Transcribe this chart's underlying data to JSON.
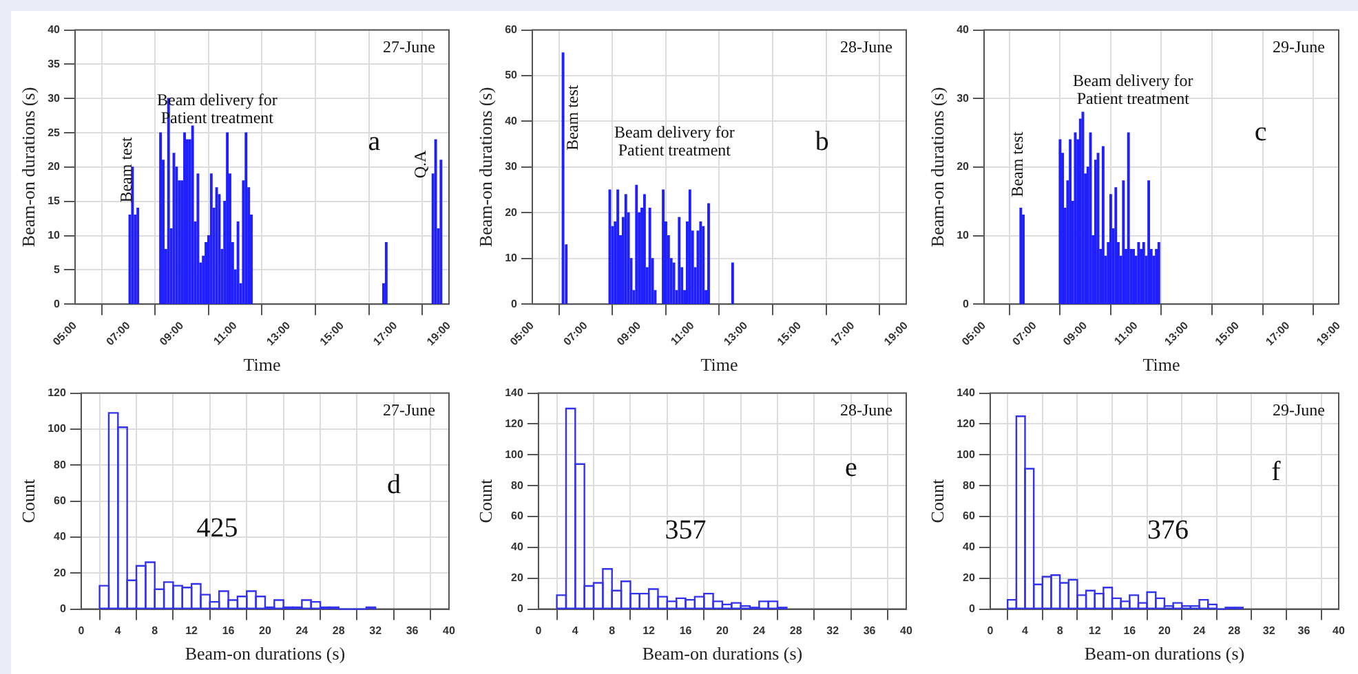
{
  "chart_data": [
    {
      "type": "bar",
      "title": "27-June",
      "xlabel": "Time",
      "ylabel": "Beam-on durations (s)",
      "color": "#2020ff",
      "grid": true,
      "x": [
        7.05,
        7.15,
        7.25,
        7.35,
        8.2,
        8.3,
        8.4,
        8.5,
        8.6,
        8.7,
        8.8,
        8.9,
        9.0,
        9.1,
        9.2,
        9.3,
        9.4,
        9.5,
        9.6,
        9.7,
        9.8,
        9.9,
        10.0,
        10.1,
        10.2,
        10.3,
        10.4,
        10.5,
        10.6,
        10.7,
        10.8,
        10.9,
        11.0,
        11.1,
        11.2,
        11.3,
        11.4,
        11.5,
        11.6,
        16.55,
        16.65,
        18.4,
        18.5,
        18.6,
        18.7
      ],
      "values": [
        13,
        20,
        13,
        14,
        25,
        21,
        8,
        30,
        11,
        22,
        20,
        18,
        18,
        25,
        24,
        24,
        26,
        12,
        19,
        6,
        7,
        9,
        10,
        19,
        14,
        17,
        16,
        8,
        15,
        25,
        19,
        9,
        5,
        12,
        3,
        18,
        25,
        17,
        13,
        3,
        9,
        19,
        24,
        11,
        21
      ],
      "xlim": [
        5,
        19
      ],
      "xticks": [
        {
          "value": 5,
          "label": "05:00"
        },
        {
          "value": 7,
          "label": "07:00"
        },
        {
          "value": 9,
          "label": "09:00"
        },
        {
          "value": 11,
          "label": "11:00"
        },
        {
          "value": 13,
          "label": "13:00"
        },
        {
          "value": 15,
          "label": "15:00"
        },
        {
          "value": 17,
          "label": "17:00"
        },
        {
          "value": 19,
          "label": "19:00"
        }
      ],
      "ylim": [
        0,
        40
      ],
      "yticks": [
        0,
        5,
        10,
        15,
        20,
        25,
        30,
        35,
        40
      ],
      "annotations": [
        "a",
        "Beam test",
        "Beam delivery for\nPatient treatment",
        "Q.A"
      ]
    },
    {
      "type": "bar",
      "title": "28-June",
      "xlabel": "Time",
      "ylabel": "Beam-on durations (s)",
      "color": "#2020ff",
      "grid": true,
      "x": [
        6.15,
        6.27,
        7.9,
        8.0,
        8.1,
        8.2,
        8.3,
        8.4,
        8.5,
        8.6,
        8.7,
        8.8,
        8.9,
        9.0,
        9.1,
        9.2,
        9.3,
        9.4,
        9.5,
        9.6,
        9.9,
        10.0,
        10.1,
        10.2,
        10.3,
        10.4,
        10.5,
        10.6,
        10.7,
        10.8,
        10.9,
        11.0,
        11.1,
        11.2,
        11.3,
        11.4,
        11.5,
        11.6,
        12.5
      ],
      "values": [
        55,
        13,
        25,
        17,
        18,
        25,
        15,
        19,
        24,
        20,
        10,
        3,
        26,
        20,
        21,
        24,
        8,
        21,
        10,
        3,
        25,
        18,
        15,
        10,
        9,
        3,
        19,
        8,
        3,
        18,
        25,
        16,
        8,
        16,
        18,
        17,
        3,
        22,
        9
      ],
      "xlim": [
        5,
        19
      ],
      "xticks": [
        {
          "value": 5,
          "label": "05:00"
        },
        {
          "value": 7,
          "label": "07:00"
        },
        {
          "value": 9,
          "label": "09:00"
        },
        {
          "value": 11,
          "label": "11:00"
        },
        {
          "value": 13,
          "label": "13:00"
        },
        {
          "value": 15,
          "label": "15:00"
        },
        {
          "value": 17,
          "label": "17:00"
        },
        {
          "value": 19,
          "label": "19:00"
        }
      ],
      "ylim": [
        0,
        60
      ],
      "yticks": [
        0,
        10,
        20,
        30,
        40,
        50,
        60
      ],
      "annotations": [
        "b",
        "Beam test",
        "Beam delivery for\nPatient treatment"
      ]
    },
    {
      "type": "bar",
      "title": "29-June",
      "xlabel": "Time",
      "ylabel": "Beam-on durations (s)",
      "color": "#2020ff",
      "grid": true,
      "x": [
        6.45,
        6.55,
        8.0,
        8.1,
        8.2,
        8.3,
        8.4,
        8.5,
        8.6,
        8.7,
        8.8,
        8.9,
        9.0,
        9.1,
        9.2,
        9.3,
        9.4,
        9.5,
        9.6,
        9.7,
        9.8,
        9.9,
        10.0,
        10.1,
        10.2,
        10.3,
        10.4,
        10.5,
        10.6,
        10.7,
        10.8,
        10.9,
        11.0,
        11.1,
        11.2,
        11.3,
        11.4,
        11.5,
        11.6,
        11.7,
        11.8,
        11.9
      ],
      "values": [
        14,
        13,
        24,
        22,
        14,
        18,
        24,
        15,
        25,
        24,
        27,
        28,
        19,
        20,
        25,
        10,
        21,
        22,
        8,
        23,
        7,
        9,
        16,
        11,
        17,
        9,
        7,
        18,
        8,
        25,
        8,
        8,
        7,
        9,
        8,
        9,
        7,
        18,
        8,
        7,
        8,
        9
      ],
      "xlim": [
        5,
        19
      ],
      "xticks": [
        {
          "value": 5,
          "label": "05:00"
        },
        {
          "value": 7,
          "label": "07:00"
        },
        {
          "value": 9,
          "label": "09:00"
        },
        {
          "value": 11,
          "label": "11:00"
        },
        {
          "value": 13,
          "label": "13:00"
        },
        {
          "value": 15,
          "label": "15:00"
        },
        {
          "value": 17,
          "label": "17:00"
        },
        {
          "value": 19,
          "label": "19:00"
        }
      ],
      "ylim": [
        0,
        40
      ],
      "yticks": [
        0,
        10,
        20,
        30,
        40
      ],
      "annotations": [
        "c",
        "Beam test",
        "Beam delivery for\nPatient treatment"
      ]
    },
    {
      "type": "histogram",
      "title": "27-June",
      "xlabel": "Beam-on durations (s)",
      "ylabel": "Count",
      "color": "#3333ee",
      "grid": true,
      "bins": [
        2,
        3,
        4,
        5,
        6,
        7,
        8,
        9,
        10,
        11,
        12,
        13,
        14,
        15,
        16,
        17,
        18,
        19,
        20,
        21,
        22,
        23,
        24,
        25,
        26,
        27,
        28,
        29,
        30,
        31,
        32
      ],
      "values": [
        13,
        109,
        101,
        16,
        24,
        26,
        11,
        15,
        13,
        12,
        14,
        8,
        4,
        10,
        5,
        7,
        10,
        7,
        1,
        5,
        1,
        1,
        5,
        4,
        1,
        1,
        0,
        0,
        0,
        1
      ],
      "xlim": [
        0,
        40
      ],
      "xticks": [
        0,
        4,
        8,
        12,
        16,
        20,
        24,
        28,
        32,
        36,
        40
      ],
      "ylim": [
        0,
        120
      ],
      "yticks": [
        0,
        20,
        40,
        60,
        80,
        100,
        120
      ],
      "annotations": [
        "d",
        "425"
      ]
    },
    {
      "type": "histogram",
      "title": "28-June",
      "xlabel": "Beam-on durations (s)",
      "ylabel": "Count",
      "color": "#3333ee",
      "grid": true,
      "bins": [
        2,
        3,
        4,
        5,
        6,
        7,
        8,
        9,
        10,
        11,
        12,
        13,
        14,
        15,
        16,
        17,
        18,
        19,
        20,
        21,
        22,
        23,
        24,
        25,
        26,
        27
      ],
      "values": [
        9,
        130,
        94,
        15,
        17,
        26,
        12,
        18,
        10,
        10,
        13,
        8,
        5,
        7,
        6,
        8,
        10,
        5,
        3,
        4,
        2,
        1,
        5,
        5,
        1
      ],
      "xlim": [
        0,
        40
      ],
      "xticks": [
        0,
        4,
        8,
        12,
        16,
        20,
        24,
        28,
        32,
        36,
        40
      ],
      "ylim": [
        0,
        140
      ],
      "yticks": [
        0,
        20,
        40,
        60,
        80,
        100,
        120,
        140
      ],
      "annotations": [
        "e",
        "357"
      ]
    },
    {
      "type": "histogram",
      "title": "29-June",
      "xlabel": "Beam-on durations (s)",
      "ylabel": "Count",
      "color": "#3333ee",
      "grid": true,
      "bins": [
        2,
        3,
        4,
        5,
        6,
        7,
        8,
        9,
        10,
        11,
        12,
        13,
        14,
        15,
        16,
        17,
        18,
        19,
        20,
        21,
        22,
        23,
        24,
        25,
        26,
        27,
        28,
        29
      ],
      "values": [
        6,
        125,
        91,
        16,
        21,
        22,
        17,
        19,
        9,
        12,
        10,
        14,
        7,
        5,
        9,
        4,
        11,
        7,
        2,
        4,
        2,
        2,
        6,
        3,
        0,
        1,
        1
      ],
      "xlim": [
        0,
        40
      ],
      "xticks": [
        0,
        4,
        8,
        12,
        16,
        20,
        24,
        28,
        32,
        36,
        40
      ],
      "ylim": [
        0,
        140
      ],
      "yticks": [
        0,
        20,
        40,
        60,
        80,
        100,
        120,
        140
      ],
      "annotations": [
        "f",
        "376"
      ]
    }
  ]
}
